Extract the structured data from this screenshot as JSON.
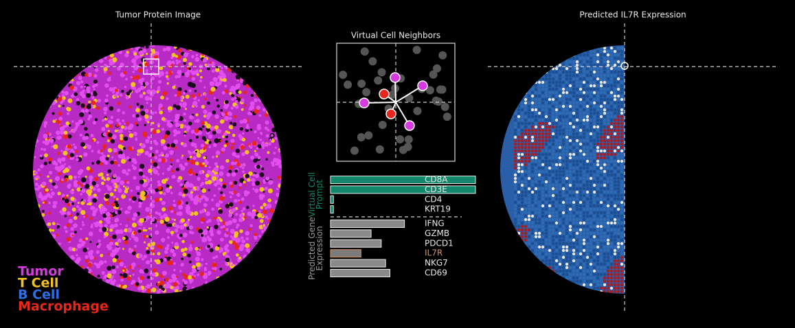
{
  "left_panel": {
    "title": "Tumor Protein Image",
    "legend": [
      {
        "name": "Tumor",
        "color": "#d63be0"
      },
      {
        "name": "T Cell",
        "color": "#f2c21f"
      },
      {
        "name": "B Cell",
        "color": "#2f6fe8"
      },
      {
        "name": "Macrophage",
        "color": "#e8261c"
      }
    ]
  },
  "middle_panel": {
    "title": "Virtual Cell Neighbors"
  },
  "right_panel": {
    "title": "Predicted IL7R Expression"
  },
  "chart_data": {
    "type": "bar",
    "orientation": "horizontal",
    "xlim": [
      0,
      1
    ],
    "groups": [
      {
        "name": "Virtual Cell Prompt",
        "color": "#13876b",
        "label_color": "#13876b",
        "categories": [
          "CD8A",
          "CD3E",
          "CD4",
          "KRT19"
        ],
        "values": [
          1.0,
          1.0,
          0.02,
          0.02
        ]
      },
      {
        "name": "Predicted Gene Expression",
        "color": "#8a8a8a",
        "label_color": "#9a9a9a",
        "categories": [
          "IFNG",
          "GZMB",
          "PDCD1",
          "IL7R",
          "NKG7",
          "CD69"
        ],
        "values": [
          0.51,
          0.28,
          0.35,
          0.21,
          0.38,
          0.41
        ],
        "highlight": "IL7R",
        "highlight_color": "#d8925a"
      }
    ]
  }
}
